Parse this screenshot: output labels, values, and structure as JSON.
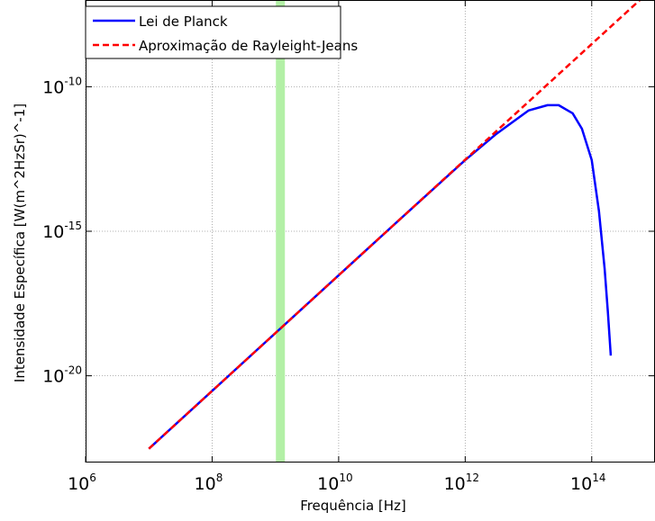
{
  "chart_data": {
    "type": "line",
    "title": "",
    "xlabel": "Frequência [Hz]",
    "ylabel": "Intensidade Específica [W(m^2HzSr)^-1]",
    "x_scale": "log",
    "y_scale": "log",
    "xlim": [
      1000000.0,
      1000000000000000.0
    ],
    "ylim": [
      1e-23,
      1e-07
    ],
    "grid": true,
    "legend_position": "top-left",
    "x_ticks": [
      {
        "value": 1000000.0,
        "base": "10",
        "exp": "6"
      },
      {
        "value": 100000000.0,
        "base": "10",
        "exp": "8"
      },
      {
        "value": 10000000000.0,
        "base": "10",
        "exp": "10"
      },
      {
        "value": 1000000000000.0,
        "base": "10",
        "exp": "12"
      },
      {
        "value": 100000000000000.0,
        "base": "10",
        "exp": "14"
      }
    ],
    "y_ticks": [
      {
        "value": 1e-10,
        "base": "10",
        "exp": "-10"
      },
      {
        "value": 1e-15,
        "base": "10",
        "exp": "-15"
      },
      {
        "value": 1e-20,
        "base": "10",
        "exp": "-20"
      }
    ],
    "highlight_band": {
      "x": 1200000000.0,
      "color": "#b3f0a6"
    },
    "series": [
      {
        "name": "Lei de Planck",
        "color": "#0000ff",
        "style": "solid",
        "x": [
          10000000.0,
          100000000.0,
          1000000000.0,
          10000000000.0,
          100000000000.0,
          1000000000000.0,
          3000000000000.0,
          10000000000000.0,
          20000000000000.0,
          30000000000000.0,
          50000000000000.0,
          70000000000000.0,
          100000000000000.0,
          130000000000000.0,
          160000000000000.0,
          180000000000000.0,
          200000000000000.0
        ],
        "y": [
          3e-23,
          3e-21,
          3e-19,
          3e-17,
          3e-15,
          2.9e-13,
          2.2e-12,
          1.5e-11,
          2.3e-11,
          2.3e-11,
          1.2e-11,
          3.5e-12,
          2.9e-13,
          5e-15,
          5e-17,
          1.6e-18,
          5e-20
        ]
      },
      {
        "name": "Aproximação de Rayleight-Jeans",
        "color": "#ff0000",
        "style": "dashed",
        "x": [
          10000000.0,
          100000000.0,
          1000000000.0,
          10000000000.0,
          100000000000.0,
          1000000000000.0,
          10000000000000.0,
          100000000000000.0,
          1000000000000000.0
        ],
        "y": [
          3e-23,
          3e-21,
          3e-19,
          3e-17,
          3e-15,
          3e-13,
          3e-11,
          3e-09,
          3e-07
        ]
      }
    ]
  }
}
